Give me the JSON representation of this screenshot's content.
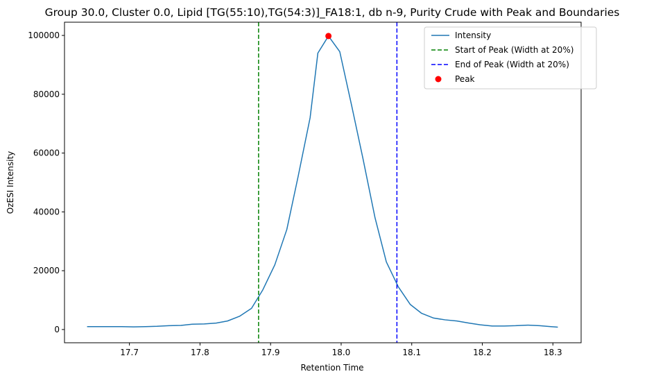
{
  "chart_data": {
    "type": "line",
    "title": "Group 30.0, Cluster 0.0, Lipid [TG(55:10),TG(54:3)]_FA18:1, db n-9, Purity Crude with Peak and Boundaries",
    "xlabel": "Retention Time",
    "ylabel": "OzESI Intensity",
    "xlim": [
      17.608,
      18.34
    ],
    "ylim": [
      -4500,
      104500
    ],
    "xticks": [
      17.7,
      17.8,
      17.9,
      18.0,
      18.1,
      18.2,
      18.3
    ],
    "xtick_labels": [
      "17.7",
      "17.8",
      "17.9",
      "18.0",
      "18.1",
      "18.2",
      "18.3"
    ],
    "yticks": [
      0,
      20000,
      40000,
      60000,
      80000,
      100000
    ],
    "ytick_labels": [
      "0",
      "20000",
      "40000",
      "60000",
      "80000",
      "100000"
    ],
    "grid": false,
    "legend_position": "top-right",
    "series": [
      {
        "name": "Intensity",
        "color": "#1f77b4",
        "style": "solid",
        "x": [
          17.64,
          17.656,
          17.673,
          17.689,
          17.706,
          17.723,
          17.739,
          17.756,
          17.773,
          17.789,
          17.806,
          17.823,
          17.839,
          17.856,
          17.873,
          17.889,
          17.906,
          17.923,
          17.939,
          17.956,
          17.967,
          17.982,
          17.998,
          18.015,
          18.031,
          18.048,
          18.064,
          18.081,
          18.098,
          18.114,
          18.131,
          18.147,
          18.164,
          18.181,
          18.197,
          18.214,
          18.231,
          18.247,
          18.264,
          18.281,
          18.297,
          18.307
        ],
        "values": [
          1000,
          1000,
          1000,
          1000,
          900,
          1000,
          1100,
          1300,
          1400,
          1800,
          1900,
          2200,
          2900,
          4500,
          7200,
          13500,
          22000,
          34000,
          52000,
          72000,
          94000,
          99800,
          94500,
          76000,
          58000,
          38000,
          23000,
          14500,
          8500,
          5500,
          3900,
          3300,
          2900,
          2200,
          1600,
          1200,
          1200,
          1300,
          1500,
          1300,
          1000,
          800
        ]
      },
      {
        "name": "Start of Peak (Width at 20%)",
        "color": "#008000",
        "style": "dashed",
        "type": "vline",
        "x": 17.883
      },
      {
        "name": "End of Peak (Width at 20%)",
        "color": "#0000ff",
        "style": "dashed",
        "type": "vline",
        "x": 18.079
      },
      {
        "name": "Peak",
        "color": "#ff0000",
        "style": "marker",
        "type": "point",
        "x": 17.982,
        "y": 99800
      }
    ]
  }
}
